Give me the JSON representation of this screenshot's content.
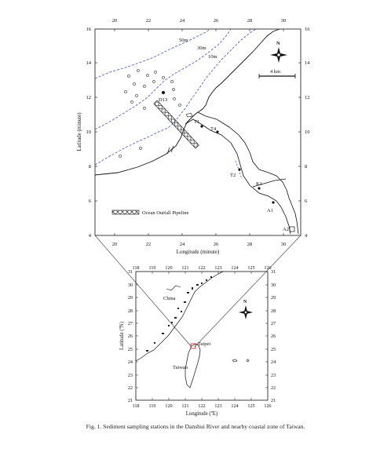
{
  "top_map": {
    "x_ticks": [
      "20",
      "22",
      "24",
      "26",
      "28",
      "30"
    ],
    "y_ticks": [
      "16",
      "14",
      "12",
      "10",
      "8",
      "6",
      "4"
    ],
    "xlabel": "Longitude (minute)",
    "ylabel": "Latitude (minute)",
    "depth_labels": [
      "50m",
      "30m",
      "10m"
    ],
    "scale_label": "4 km",
    "north_label": "N",
    "station_labels": {
      "d13": "D13",
      "t1": "T1",
      "t4": "T4",
      "t2": "T2",
      "k1": "K1",
      "a1": "A1",
      "a2": "A2"
    },
    "legend_label": "Ocean Outfall Pipeline"
  },
  "bottom_map": {
    "x_ticks": [
      "118",
      "119",
      "120",
      "121",
      "122",
      "123",
      "124",
      "125",
      "126"
    ],
    "y_ticks": [
      "31",
      "30",
      "29",
      "28",
      "27",
      "26",
      "25",
      "24",
      "23",
      "22",
      "21"
    ],
    "xlabel": "Longitude (ºE)",
    "ylabel": "Latitude (ºN)",
    "place_labels": {
      "china": "China",
      "taipei": "Taipei",
      "taiwan": "Taiwan"
    },
    "north_label": "N"
  },
  "caption": "Fig. 1. Sediment sampling stations in the Danshui River and nearby coastal zone of Taiwan."
}
